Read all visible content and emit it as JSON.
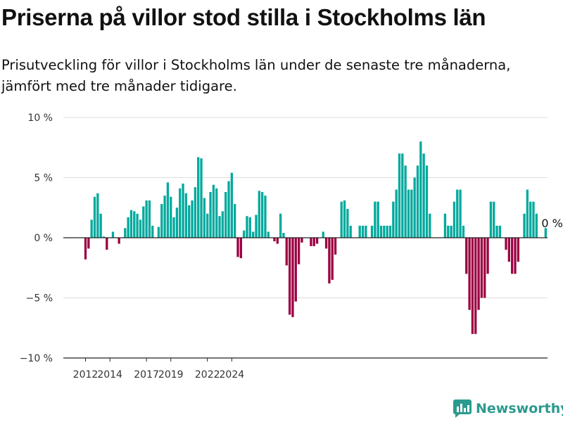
{
  "chart_data": {
    "type": "bar",
    "title": "Priserna på villor stod stilla i Stockholms län",
    "subtitle": "Prisutveckling för villor i Stockholms län under de senaste tre månaderna, jämfört med tre månader tidigare.",
    "xlabel": "",
    "ylabel": "",
    "ylim": [
      -10,
      10
    ],
    "yticks": [
      {
        "value": 10,
        "label": "10 %"
      },
      {
        "value": 5,
        "label": "5 %"
      },
      {
        "value": 0,
        "label": "0 %"
      },
      {
        "value": -5,
        "label": "−5 %"
      },
      {
        "value": -10,
        "label": "−10 %"
      }
    ],
    "xticks": [
      {
        "value": 2012,
        "label": "2012"
      },
      {
        "value": 2014,
        "label": "2014"
      },
      {
        "value": 2017,
        "label": "2017"
      },
      {
        "value": 2019,
        "label": "2019"
      },
      {
        "value": 2022,
        "label": "2022"
      },
      {
        "value": 2024,
        "label": "2024"
      }
    ],
    "x_start": 2012,
    "annotation": {
      "label": "0 %",
      "value": 0
    },
    "colors": {
      "positive": "#00a99d",
      "negative": "#9b0041",
      "axis": "#222222",
      "grid": "#dddddd"
    },
    "values": [
      -1.8,
      -0.9,
      1.5,
      3.4,
      3.7,
      2.0,
      0.1,
      -1.0,
      0.0,
      0.5,
      0.0,
      -0.5,
      0.0,
      0.8,
      1.7,
      2.3,
      2.2,
      2.0,
      1.5,
      2.6,
      3.1,
      3.1,
      1.0,
      0.0,
      0.9,
      2.8,
      3.5,
      4.6,
      3.4,
      1.7,
      2.5,
      4.1,
      4.5,
      3.7,
      2.7,
      3.1,
      4.2,
      6.7,
      6.6,
      3.3,
      2.0,
      3.8,
      4.4,
      4.1,
      1.8,
      2.2,
      3.8,
      4.7,
      5.4,
      2.8,
      -1.6,
      -1.7,
      0.6,
      1.8,
      1.7,
      0.5,
      1.9,
      3.9,
      3.8,
      3.5,
      0.5,
      0.0,
      -0.3,
      -0.5,
      2.0,
      0.4,
      -2.3,
      -6.4,
      -6.6,
      -5.3,
      -2.2,
      -0.4,
      0.0,
      0.0,
      -0.7,
      -0.7,
      -0.5,
      0.0,
      0.5,
      -0.9,
      -3.8,
      -3.5,
      -1.4,
      0.0,
      3.0,
      3.1,
      2.4,
      1.0,
      0.0,
      0.0,
      1.0,
      1.0,
      1.0,
      0.0,
      1.0,
      3.0,
      3.0,
      1.0,
      1.0,
      1.0,
      1.0,
      3.0,
      4.0,
      7.0,
      7.0,
      6.0,
      4.0,
      4.0,
      5.0,
      6.0,
      8.0,
      7.0,
      6.0,
      2.0,
      0.0,
      0.0,
      0.0,
      0.0,
      2.0,
      1.0,
      1.0,
      3.0,
      4.0,
      4.0,
      1.0,
      -3.0,
      -6.0,
      -8.0,
      -8.0,
      -6.0,
      -5.0,
      -5.0,
      -3.0,
      3.0,
      3.0,
      1.0,
      1.0,
      0.0,
      -1.0,
      -2.0,
      -3.0,
      -3.0,
      -2.0,
      0.0,
      2.0,
      4.0,
      3.0,
      3.0,
      2.0,
      0.0,
      0.0,
      0.8
    ]
  },
  "brand": {
    "name": "Newsworthy",
    "icon": "newsworthy-logo-icon"
  }
}
